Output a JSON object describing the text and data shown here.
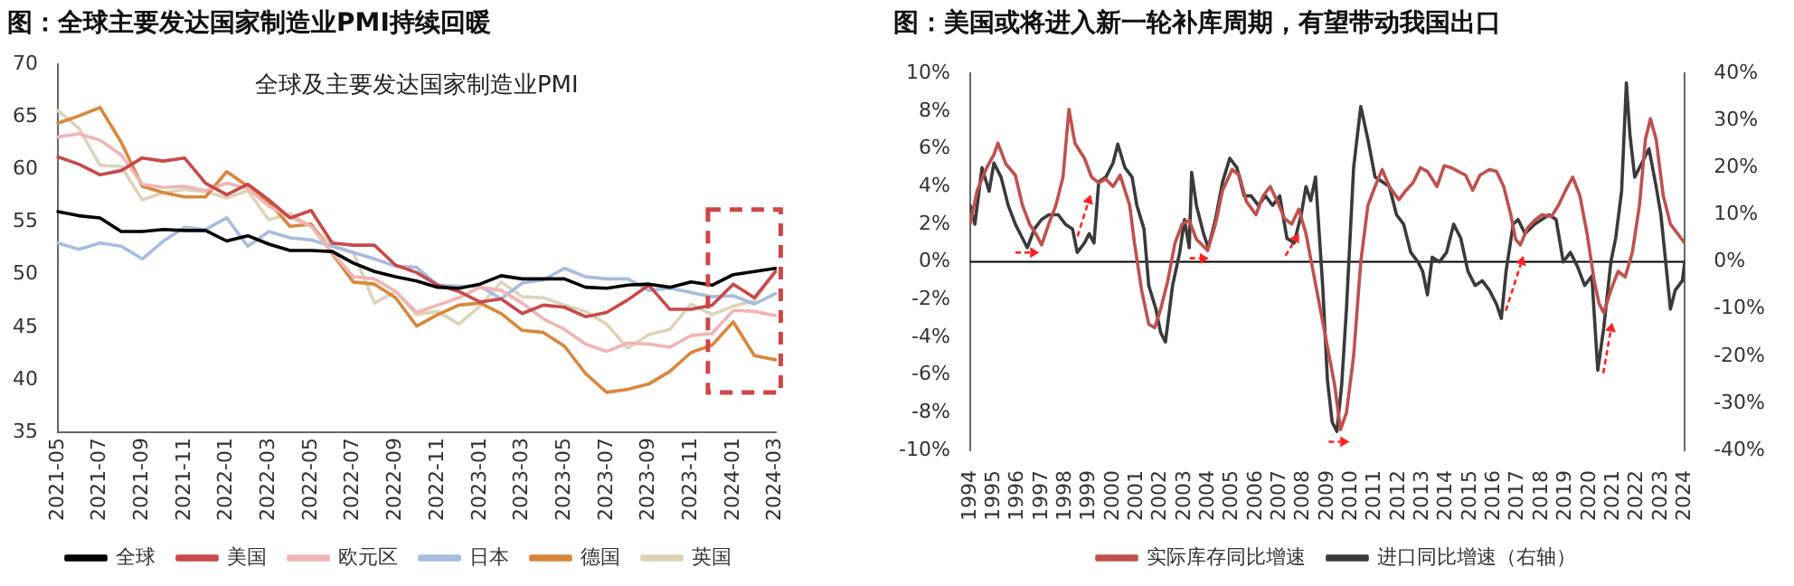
{
  "chart_data": [
    {
      "type": "line",
      "title": "图：全球主要发达国家制造业PMI持续回暖",
      "subtitle": "全球及主要发达国家制造业PMI",
      "categories": [
        "2021-05",
        null,
        "2021-07",
        null,
        "2021-09",
        null,
        "2021-11",
        null,
        "2022-01",
        null,
        "2022-03",
        null,
        "2022-05",
        null,
        "2022-07",
        null,
        "2022-09",
        null,
        "2022-11",
        null,
        "2023-01",
        null,
        "2023-03",
        null,
        "2023-05",
        null,
        "2023-07",
        null,
        "2023-09",
        null,
        "2023-11",
        null,
        "2024-01",
        null,
        "2024-03"
      ],
      "series": [
        {
          "name": "全球",
          "color": "#000000",
          "values": [
            56,
            55.6,
            55.4,
            54.1,
            54.1,
            54.3,
            54.2,
            54.2,
            53.2,
            53.7,
            52.9,
            52.3,
            52.3,
            52.2,
            51.1,
            50.3,
            49.8,
            49.4,
            48.8,
            48.7,
            49.1,
            49.9,
            49.6,
            49.6,
            49.6,
            48.8,
            48.7,
            49.0,
            49.1,
            48.8,
            49.3,
            49.0,
            50.0,
            50.3,
            50.6
          ]
        },
        {
          "name": "美国",
          "color": "#c9484a",
          "values": [
            61.2,
            60.5,
            59.5,
            59.9,
            61.1,
            60.8,
            61.1,
            58.7,
            57.6,
            58.6,
            57.1,
            55.4,
            56.1,
            53.0,
            52.8,
            52.8,
            50.9,
            50.2,
            49.0,
            48.4,
            47.4,
            47.7,
            46.3,
            47.1,
            46.9,
            46.0,
            46.4,
            47.6,
            49.0,
            46.7,
            46.7,
            47.1,
            49.1,
            47.8,
            50.3
          ]
        },
        {
          "name": "欧元区",
          "color": "#f0b5b5",
          "values": [
            63.1,
            63.4,
            62.8,
            61.4,
            58.6,
            58.3,
            58.4,
            58.0,
            58.7,
            58.2,
            56.5,
            55.5,
            54.6,
            52.1,
            49.8,
            49.6,
            48.4,
            46.4,
            47.1,
            47.8,
            48.8,
            48.5,
            47.3,
            45.8,
            44.8,
            43.4,
            42.7,
            43.5,
            43.4,
            43.1,
            44.2,
            44.4,
            46.6,
            46.5,
            46.1
          ]
        },
        {
          "name": "日本",
          "color": "#a6bde0",
          "values": [
            53.0,
            52.4,
            53.0,
            52.7,
            51.5,
            53.2,
            54.5,
            54.3,
            55.4,
            52.7,
            54.1,
            53.5,
            53.3,
            52.7,
            52.1,
            51.5,
            50.8,
            50.7,
            49.0,
            48.9,
            48.9,
            47.7,
            49.2,
            49.5,
            50.6,
            49.8,
            49.6,
            49.6,
            48.5,
            48.7,
            48.3,
            47.9,
            48.0,
            47.2,
            48.2
          ]
        },
        {
          "name": "德国",
          "color": "#d9873b",
          "values": [
            64.4,
            65.1,
            65.9,
            62.6,
            58.4,
            57.8,
            57.4,
            57.4,
            59.8,
            58.4,
            56.9,
            54.6,
            54.8,
            52.0,
            49.3,
            49.1,
            47.8,
            45.1,
            46.2,
            47.1,
            47.3,
            46.3,
            44.7,
            44.5,
            43.2,
            40.6,
            38.8,
            39.1,
            39.6,
            40.8,
            42.6,
            43.3,
            45.5,
            42.3,
            41.9
          ]
        },
        {
          "name": "英国",
          "color": "#ddd4b8",
          "values": [
            65.6,
            63.9,
            60.4,
            60.3,
            57.1,
            57.8,
            58.1,
            57.9,
            57.3,
            58.0,
            55.2,
            55.8,
            54.6,
            52.8,
            52.1,
            47.3,
            48.4,
            46.2,
            46.5,
            45.3,
            47.0,
            49.3,
            47.9,
            47.8,
            47.1,
            46.5,
            45.3,
            43.0,
            44.3,
            44.8,
            47.2,
            46.2,
            47.0,
            47.5,
            50.3
          ]
        }
      ],
      "ylim": [
        35,
        70
      ],
      "yticks": [
        35,
        40,
        45,
        50,
        55,
        60,
        65,
        70
      ],
      "grid": false,
      "legend": "bottom",
      "marker": "none",
      "line_style": "solid"
    },
    {
      "type": "line",
      "title": "图：美国或将进入新一轮补库周期，有望带动我国出口",
      "series": [
        {
          "name": "实际库存同比增速",
          "color": "#c0504d",
          "x": [
            1994.0,
            1994.3,
            1994.7,
            1995.0,
            1995.17,
            1995.5,
            1995.9,
            1996.2,
            1996.5,
            1996.8,
            1997.0,
            1997.3,
            1997.6,
            1997.9,
            1998.15,
            1998.4,
            1998.8,
            1999.1,
            1999.4,
            1999.7,
            2000.0,
            2000.3,
            2000.7,
            2000.9,
            2001.2,
            2001.5,
            2001.75,
            2002.0,
            2002.3,
            2002.6,
            2002.9,
            2003.2,
            2003.5,
            2003.97,
            2004.3,
            2004.6,
            2005.0,
            2005.3,
            2005.6,
            2006.0,
            2006.3,
            2006.6,
            2006.9,
            2007.2,
            2007.5,
            2007.8,
            2008.1,
            2008.4,
            2008.7,
            2009.0,
            2009.3,
            2009.55,
            2009.8,
            2010.1,
            2010.4,
            2010.7,
            2011.0,
            2011.3,
            2011.6,
            2012.0,
            2012.3,
            2012.6,
            2012.9,
            2013.2,
            2013.6,
            2013.9,
            2014.2,
            2014.5,
            2014.8,
            2015.1,
            2015.4,
            2015.8,
            2016.1,
            2016.4,
            2016.7,
            2016.9,
            2017.1,
            2017.4,
            2017.7,
            2018.0,
            2018.4,
            2018.7,
            2019.0,
            2019.3,
            2019.6,
            2019.9,
            2020.2,
            2020.4,
            2020.6,
            2020.9,
            2021.2,
            2021.5,
            2021.8,
            2022.1,
            2022.35,
            2022.56,
            2022.8,
            2023.1,
            2023.4,
            2023.7,
            2024.0
          ],
          "values": [
            2.0,
            3.8,
            5.0,
            5.7,
            6.3,
            5.2,
            4.6,
            3.0,
            2.0,
            1.4,
            0.9,
            2.0,
            3.0,
            4.5,
            8.1,
            6.3,
            5.5,
            4.5,
            4.2,
            4.4,
            4.0,
            4.6,
            3.0,
            1.0,
            -1.5,
            -3.3,
            -3.5,
            -2.5,
            -1.0,
            1.0,
            2.0,
            2.2,
            1.2,
            0.6,
            2.0,
            3.8,
            4.9,
            4.6,
            3.2,
            2.5,
            3.5,
            4.0,
            3.2,
            2.3,
            2.0,
            2.8,
            1.5,
            -0.5,
            -2.5,
            -4.5,
            -6.5,
            -8.9,
            -8.0,
            -5.0,
            0.0,
            3.0,
            4.0,
            4.9,
            4.0,
            3.3,
            3.8,
            4.2,
            5.0,
            4.8,
            4.0,
            5.1,
            5.0,
            4.8,
            4.6,
            3.8,
            4.6,
            4.9,
            4.8,
            4.0,
            2.5,
            1.2,
            0.9,
            1.8,
            2.2,
            2.5,
            2.4,
            3.0,
            3.8,
            4.5,
            3.5,
            1.5,
            -1.0,
            -2.2,
            -2.7,
            -1.5,
            -0.5,
            -0.8,
            0.5,
            3.0,
            6.5,
            7.6,
            6.5,
            3.5,
            2.0,
            1.5,
            1.0
          ]
        },
        {
          "name": "进口同比增速（右轴）",
          "color": "#3a3a3a",
          "axis": "y2",
          "x": [
            1994.0,
            1994.2,
            1994.5,
            1994.8,
            1995.0,
            1995.3,
            1995.6,
            1995.9,
            1996.2,
            1996.4,
            1996.7,
            1997.0,
            1997.3,
            1997.7,
            1998.0,
            1998.3,
            1998.5,
            1998.8,
            1999.0,
            1999.2,
            1999.4,
            1999.7,
            2000.0,
            2000.2,
            2000.5,
            2000.8,
            2001.0,
            2001.3,
            2001.5,
            2001.8,
            2002.0,
            2002.2,
            2002.5,
            2002.8,
            2003.0,
            2003.2,
            2003.3,
            2003.5,
            2003.8,
            2004.0,
            2004.3,
            2004.6,
            2004.9,
            2005.2,
            2005.5,
            2005.8,
            2006.1,
            2006.4,
            2006.7,
            2007.0,
            2007.3,
            2007.6,
            2007.9,
            2008.1,
            2008.3,
            2008.5,
            2008.8,
            2009.0,
            2009.2,
            2009.4,
            2009.6,
            2009.8,
            2010.1,
            2010.4,
            2010.7,
            2011.0,
            2011.3,
            2011.6,
            2011.9,
            2012.2,
            2012.5,
            2012.8,
            2013.0,
            2013.2,
            2013.4,
            2013.7,
            2014.0,
            2014.3,
            2014.6,
            2014.9,
            2015.2,
            2015.5,
            2015.8,
            2016.1,
            2016.3,
            2016.5,
            2016.8,
            2017.0,
            2017.3,
            2017.7,
            2018.0,
            2018.3,
            2018.6,
            2018.9,
            2019.2,
            2019.5,
            2019.8,
            2020.1,
            2020.35,
            2020.6,
            2020.9,
            2021.1,
            2021.35,
            2021.55,
            2021.7,
            2021.9,
            2022.2,
            2022.5,
            2022.8,
            2023.0,
            2023.2,
            2023.4,
            2023.6,
            2023.9,
            2024.0
          ],
          "values": [
            12,
            8,
            20,
            15,
            21,
            18,
            12,
            8,
            5,
            3,
            7,
            9,
            10,
            10,
            8,
            7,
            2,
            4,
            6,
            4,
            17,
            18,
            21,
            25,
            20,
            18,
            12,
            7,
            -5,
            -10,
            -15,
            -17,
            -5,
            2,
            9,
            3,
            19,
            12,
            6,
            3,
            9,
            17,
            22,
            20,
            14,
            14,
            12,
            14,
            12,
            14,
            5,
            4,
            10,
            16,
            13,
            18,
            -5,
            -25,
            -34,
            -36,
            -26,
            -10,
            20,
            33,
            26,
            18,
            17,
            16,
            10,
            8,
            2,
            0,
            -2,
            -7,
            1,
            0,
            2,
            8,
            5,
            -2,
            -5,
            -4,
            -6,
            -9,
            -12,
            -2,
            8,
            9,
            6,
            8,
            9,
            10,
            9,
            0,
            2,
            -1,
            -5,
            -3,
            -23,
            -14,
            0,
            5,
            15,
            38,
            27,
            18,
            21,
            24,
            16,
            10,
            0,
            -10,
            -6,
            -4,
            0
          ]
        }
      ],
      "xlim": [
        1994,
        2024
      ],
      "xticks": [
        1994,
        1995,
        1996,
        1997,
        1998,
        1999,
        2000,
        2001,
        2002,
        2003,
        2004,
        2005,
        2006,
        2007,
        2008,
        2009,
        2010,
        2011,
        2012,
        2013,
        2014,
        2015,
        2016,
        2017,
        2018,
        2019,
        2020,
        2021,
        2022,
        2023,
        2024
      ],
      "ylim": [
        -10,
        10
      ],
      "yticks": [
        {
          "value": -10,
          "label": "-10%"
        },
        {
          "value": -8,
          "label": "-8%"
        },
        {
          "value": -6,
          "label": "-6%"
        },
        {
          "value": -4,
          "label": "-4%"
        },
        {
          "value": -2,
          "label": "-2%"
        },
        {
          "value": 0,
          "label": "0%"
        },
        {
          "value": 2,
          "label": "2%"
        },
        {
          "value": 4,
          "label": "4%"
        },
        {
          "value": 6,
          "label": "6%"
        },
        {
          "value": 8,
          "label": "8%"
        },
        {
          "value": 10,
          "label": "10%"
        }
      ],
      "y2lim": [
        -40,
        40
      ],
      "y2ticks": [
        {
          "value": -40,
          "label": "-40%"
        },
        {
          "value": -30,
          "label": "-30%"
        },
        {
          "value": -20,
          "label": "-20%"
        },
        {
          "value": -10,
          "label": "-10%"
        },
        {
          "value": 0,
          "label": "0%"
        },
        {
          "value": 10,
          "label": "10%"
        },
        {
          "value": 20,
          "label": "20%"
        },
        {
          "value": 30,
          "label": "30%"
        },
        {
          "value": 40,
          "label": "40%"
        }
      ],
      "ref_lines": [
        {
          "axis": "y",
          "value": 0,
          "color": "#000000"
        }
      ],
      "grid": false,
      "legend": "bottom",
      "marker": "none",
      "line_style": "solid"
    }
  ]
}
